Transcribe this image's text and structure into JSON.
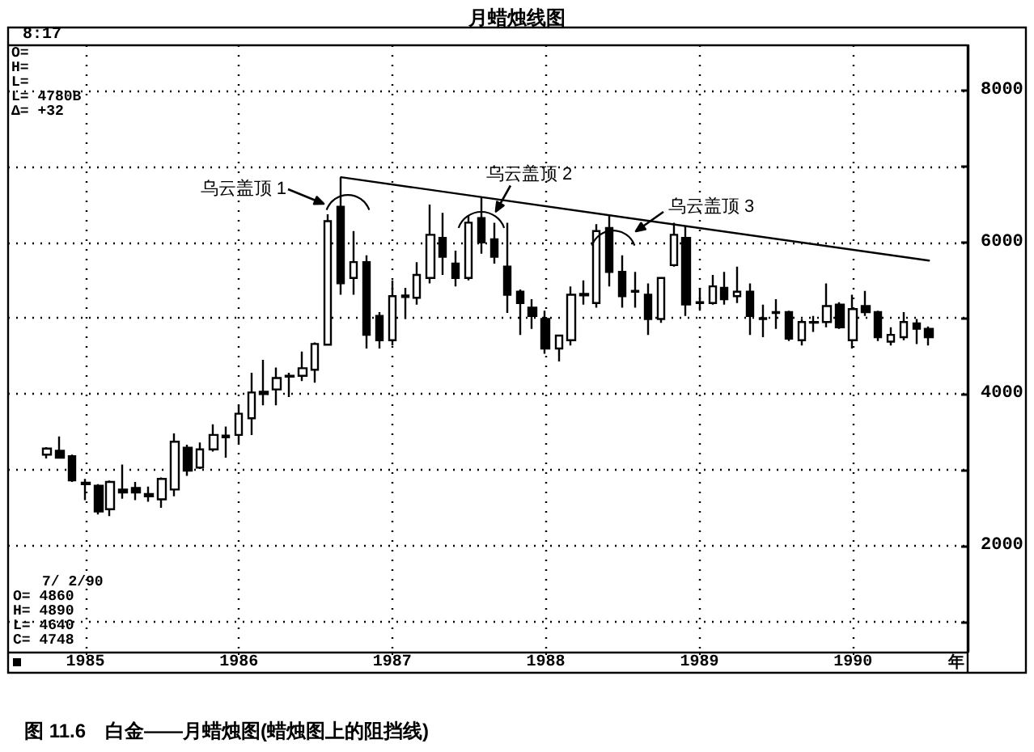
{
  "chart_data": {
    "type": "candlestick",
    "title": "月蜡烛线图",
    "xlabel": "年",
    "x": [
      "1984-10",
      "1984-11",
      "1984-12",
      "1985-01",
      "1985-02",
      "1985-03",
      "1985-04",
      "1985-05",
      "1985-06",
      "1985-07",
      "1985-08",
      "1985-09",
      "1985-10",
      "1985-11",
      "1985-12",
      "1986-01",
      "1986-02",
      "1986-03",
      "1986-04",
      "1986-05",
      "1986-06",
      "1986-07",
      "1986-08",
      "1986-09",
      "1986-10",
      "1986-11",
      "1986-12",
      "1987-01",
      "1987-02",
      "1987-03",
      "1987-04",
      "1987-05",
      "1987-06",
      "1987-07",
      "1987-08",
      "1987-09",
      "1987-10",
      "1987-11",
      "1987-12",
      "1988-01",
      "1988-02",
      "1988-03",
      "1988-04",
      "1988-05",
      "1988-06",
      "1988-07",
      "1988-08",
      "1988-09",
      "1988-10",
      "1988-11",
      "1988-12",
      "1989-01",
      "1989-02",
      "1989-03",
      "1989-04",
      "1989-05",
      "1989-06",
      "1989-07",
      "1989-08",
      "1989-09",
      "1989-10",
      "1989-11",
      "1989-12",
      "1990-01",
      "1990-02",
      "1990-03",
      "1990-04",
      "1990-05",
      "1990-06",
      "1990-07"
    ],
    "series": [
      {
        "type": "candlestick",
        "color": "#000000",
        "ohlc": [
          [
            3200,
            3300,
            3150,
            3280
          ],
          [
            3250,
            3440,
            3150,
            3160
          ],
          [
            3180,
            3200,
            2840,
            2860
          ],
          [
            2830,
            2880,
            2600,
            2810
          ],
          [
            2790,
            2810,
            2410,
            2450
          ],
          [
            2480,
            2860,
            2390,
            2840
          ],
          [
            2740,
            3070,
            2620,
            2700
          ],
          [
            2760,
            2840,
            2600,
            2700
          ],
          [
            2680,
            2780,
            2580,
            2650
          ],
          [
            2610,
            2900,
            2500,
            2880
          ],
          [
            2740,
            3480,
            2650,
            3370
          ],
          [
            3290,
            3330,
            2920,
            2990
          ],
          [
            3030,
            3360,
            3010,
            3270
          ],
          [
            3270,
            3600,
            3240,
            3460
          ],
          [
            3450,
            3570,
            3160,
            3430
          ],
          [
            3460,
            3850,
            3350,
            3740
          ],
          [
            3680,
            4280,
            3460,
            4020
          ],
          [
            4030,
            4450,
            3850,
            4000
          ],
          [
            4060,
            4350,
            3850,
            4210
          ],
          [
            4230,
            4280,
            3960,
            4240
          ],
          [
            4240,
            4560,
            4170,
            4340
          ],
          [
            4320,
            4680,
            4150,
            4660
          ],
          [
            4650,
            6370,
            4640,
            6280
          ],
          [
            6470,
            6860,
            5310,
            5460
          ],
          [
            5530,
            6150,
            5310,
            5740
          ],
          [
            5740,
            5830,
            4600,
            4780
          ],
          [
            5030,
            5080,
            4600,
            4710
          ],
          [
            4710,
            5500,
            4640,
            5290
          ],
          [
            5280,
            5400,
            4990,
            5300
          ],
          [
            5270,
            5740,
            5180,
            5570
          ],
          [
            5530,
            6500,
            5460,
            6100
          ],
          [
            6060,
            6390,
            5570,
            5810
          ],
          [
            5720,
            5890,
            5420,
            5530
          ],
          [
            5530,
            6350,
            5500,
            6260
          ],
          [
            6320,
            6600,
            5850,
            6000
          ],
          [
            6040,
            6260,
            5720,
            5810
          ],
          [
            5680,
            6260,
            5070,
            5310
          ],
          [
            5350,
            5380,
            4780,
            5200
          ],
          [
            5140,
            5250,
            4860,
            5030
          ],
          [
            4990,
            5100,
            4530,
            4600
          ],
          [
            4600,
            4780,
            4430,
            4770
          ],
          [
            4710,
            5420,
            4640,
            5310
          ],
          [
            5300,
            5500,
            5180,
            5320
          ],
          [
            5200,
            6240,
            5140,
            6150
          ],
          [
            6190,
            6370,
            5420,
            5610
          ],
          [
            5610,
            5830,
            5140,
            5290
          ],
          [
            5350,
            5610,
            5140,
            5360
          ],
          [
            5310,
            5460,
            4780,
            4990
          ],
          [
            4990,
            5530,
            4940,
            5530
          ],
          [
            5700,
            6260,
            5680,
            6100
          ],
          [
            6060,
            6220,
            5030,
            5180
          ],
          [
            5200,
            5400,
            5100,
            5210
          ],
          [
            5200,
            5570,
            5180,
            5420
          ],
          [
            5400,
            5610,
            5180,
            5250
          ],
          [
            5290,
            5680,
            5200,
            5350
          ],
          [
            5350,
            5460,
            4780,
            5030
          ],
          [
            4990,
            5180,
            4750,
            5000
          ],
          [
            5070,
            5250,
            4860,
            5080
          ],
          [
            5080,
            5100,
            4700,
            4730
          ],
          [
            4710,
            4990,
            4640,
            4950
          ],
          [
            4940,
            5030,
            4820,
            4950
          ],
          [
            4950,
            5460,
            4880,
            5160
          ],
          [
            5180,
            5210,
            4860,
            4880
          ],
          [
            4710,
            5310,
            4600,
            5120
          ],
          [
            5160,
            5360,
            5030,
            5080
          ],
          [
            5080,
            5100,
            4700,
            4750
          ],
          [
            4690,
            4880,
            4640,
            4780
          ],
          [
            4750,
            5080,
            4710,
            4950
          ],
          [
            4930,
            4990,
            4660,
            4860
          ],
          [
            4860,
            4890,
            4640,
            4748
          ]
        ]
      },
      {
        "type": "line",
        "color": "#000000",
        "x": [
          "1986-09",
          "1990-07"
        ],
        "values": [
          6860,
          5760
        ]
      }
    ],
    "xlim": [
      "1984-07",
      "1990-10"
    ],
    "xticks": [
      {
        "value": "1985-01",
        "label": "1985"
      },
      {
        "value": "1986-01",
        "label": "1986"
      },
      {
        "value": "1987-01",
        "label": "1987"
      },
      {
        "value": "1988-01",
        "label": "1988"
      },
      {
        "value": "1989-01",
        "label": "1989"
      },
      {
        "value": "1990-01",
        "label": "1990"
      }
    ],
    "ylim": [
      600,
      8600
    ],
    "yticks": [
      {
        "value": 1000,
        "label": null
      },
      2000,
      {
        "value": 3000,
        "label": null
      },
      4000,
      {
        "value": 5000,
        "label": null
      },
      6000,
      {
        "value": 7000,
        "label": null
      },
      8000
    ],
    "grid": true,
    "marker": "none",
    "line_style": "solid",
    "annotations": [
      "8:17",
      "O=",
      "H=",
      "L=",
      "L= 4780B",
      "Δ= +32",
      "7/ 2/90",
      "O= 4860",
      "H= 4890",
      "L= 4640",
      "C= 4748",
      "乌云盖顶 1",
      {
        "text": "乌云盖顶 2",
        "x": "1987-08",
        "y": 6600
      },
      "乌云盖顶 3",
      "图 11.6　白金——月蜡烛图(蜡烛图上的阻挡线)"
    ]
  }
}
